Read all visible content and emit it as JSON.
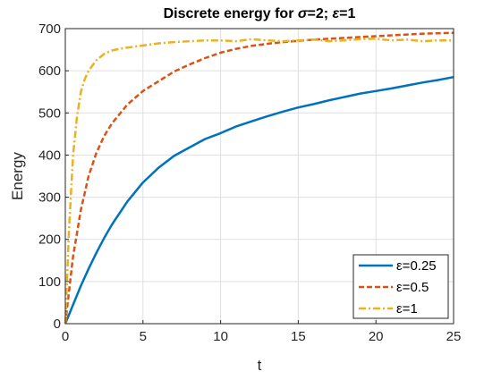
{
  "chart_data": {
    "type": "line",
    "title_prefix": "Discrete energy for ",
    "title_sigma": "σ",
    "title_mid": "=2; ",
    "title_eps": "ε",
    "title_suffix": "=1",
    "xlabel": "t",
    "ylabel": "Energy",
    "xlim": [
      0,
      25
    ],
    "ylim": [
      0,
      700
    ],
    "xticks": [
      0,
      5,
      10,
      15,
      20,
      25
    ],
    "yticks": [
      0,
      100,
      200,
      300,
      400,
      500,
      600,
      700
    ],
    "grid": true,
    "legend_position": "bottom-right",
    "series": [
      {
        "name": "ε=0.25",
        "color": "#0072BD",
        "style": "solid",
        "x": [
          0,
          0.5,
          1,
          1.5,
          2,
          2.5,
          3,
          4,
          5,
          6,
          7,
          8,
          9,
          10,
          11,
          12,
          13,
          14,
          15,
          16,
          17,
          18,
          19,
          20,
          21,
          22,
          23,
          24,
          25
        ],
        "y": [
          0,
          45,
          90,
          130,
          168,
          203,
          235,
          290,
          335,
          370,
          398,
          418,
          438,
          452,
          468,
          480,
          492,
          503,
          513,
          521,
          530,
          538,
          546,
          552,
          558,
          565,
          572,
          578,
          585
        ]
      },
      {
        "name": "ε=0.5",
        "color": "#D95319",
        "style": "dashed",
        "x": [
          0,
          0.5,
          1,
          1.5,
          2,
          2.5,
          3,
          4,
          5,
          6,
          7,
          8,
          9,
          10,
          11,
          12,
          13,
          14,
          15,
          16,
          17,
          18,
          19,
          20,
          21,
          22,
          23,
          24,
          25
        ],
        "y": [
          0,
          160,
          270,
          350,
          405,
          445,
          475,
          520,
          552,
          575,
          598,
          615,
          630,
          643,
          652,
          659,
          664,
          668,
          671,
          674,
          676,
          678,
          680,
          682,
          684,
          686,
          688,
          689,
          690
        ]
      },
      {
        "name": "ε=1",
        "color": "#EDB120",
        "style": "dashdot",
        "x": [
          0,
          0.25,
          0.5,
          0.75,
          1,
          1.25,
          1.5,
          2,
          2.5,
          3,
          3.5,
          4,
          5,
          6,
          7,
          8,
          9,
          10,
          11,
          12,
          13,
          14,
          15,
          16,
          17,
          18,
          19,
          20,
          21,
          22,
          23,
          24,
          25
        ],
        "y": [
          0,
          230,
          400,
          490,
          550,
          580,
          600,
          625,
          640,
          648,
          652,
          655,
          660,
          665,
          668,
          670,
          672,
          672,
          670,
          675,
          672,
          670,
          672,
          674,
          670,
          672,
          675,
          676,
          672,
          674,
          670,
          672,
          672
        ]
      }
    ]
  }
}
